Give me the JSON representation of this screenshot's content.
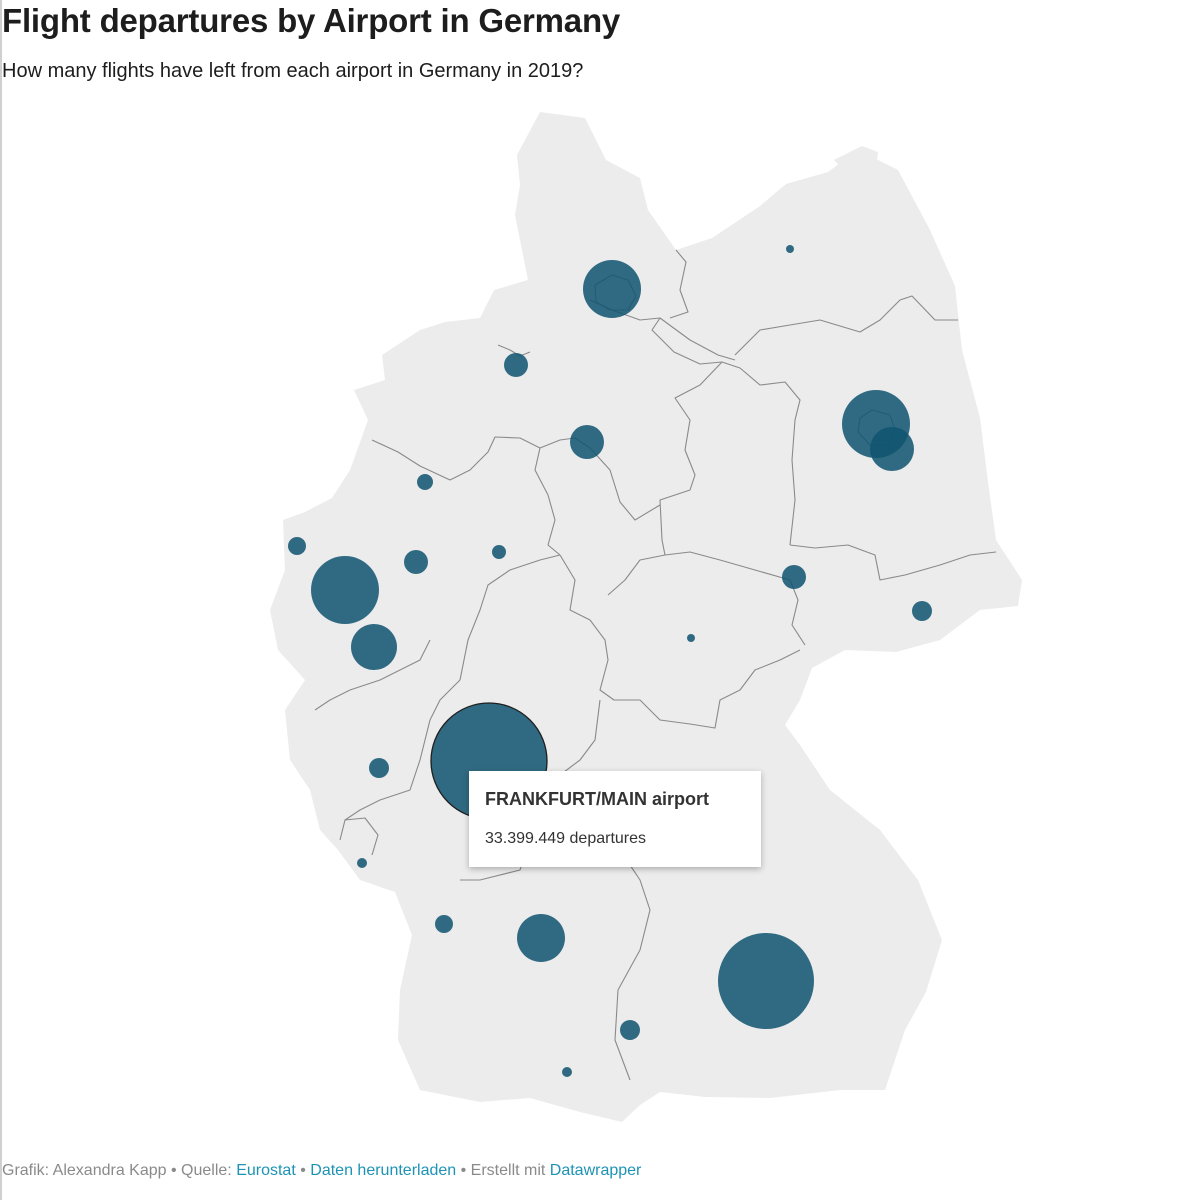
{
  "header": {
    "title": "Flight departures by Airport in Germany",
    "subtitle": "How many flights have left from each airport in Germany in 2019?"
  },
  "colors": {
    "land": "#ececec",
    "borders": "#8a8a8a",
    "bubble": "#0f5470",
    "link": "#1d93b5"
  },
  "tooltip": {
    "airport": "FRANKFURT/MAIN airport",
    "value": "33.399.449 departures"
  },
  "footer": {
    "credit": "Grafik: Alexandra Kapp",
    "sep1": " • Quelle: ",
    "source_link": "Eurostat",
    "sep2": " • ",
    "download_link": "Daten herunterladen",
    "sep3": " • Erstellt mit ",
    "tool_link": "Datawrapper"
  }
}
